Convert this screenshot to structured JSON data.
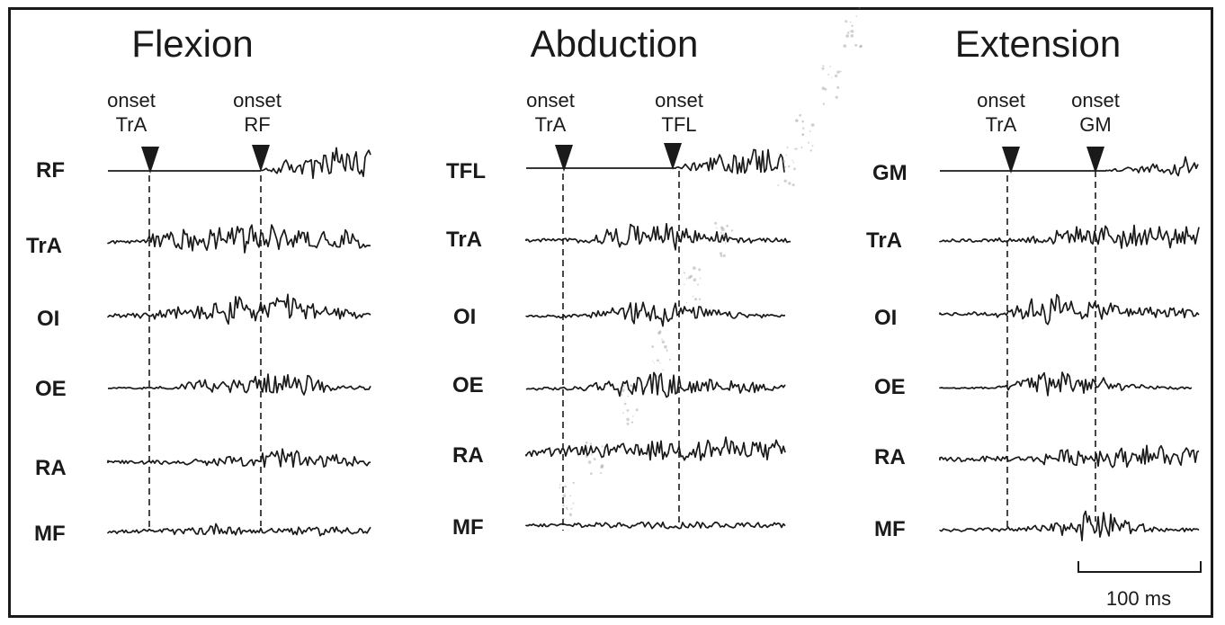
{
  "panels": [
    {
      "title": "Flexion",
      "onsets": [
        {
          "line1": "onset",
          "line2": "TrA"
        },
        {
          "line1": "onset",
          "line2": "RF"
        }
      ],
      "muscles": [
        "RF",
        "TrA",
        "OI",
        "OE",
        "RA",
        "MF"
      ]
    },
    {
      "title": "Abduction",
      "onsets": [
        {
          "line1": "onset",
          "line2": "TrA"
        },
        {
          "line1": "onset",
          "line2": "TFL"
        }
      ],
      "muscles": [
        "TFL",
        "TrA",
        "OI",
        "OE",
        "RA",
        "MF"
      ]
    },
    {
      "title": "Extension",
      "onsets": [
        {
          "line1": "onset",
          "line2": "TrA"
        },
        {
          "line1": "onset",
          "line2": "GM"
        }
      ],
      "muscles": [
        "GM",
        "TrA",
        "OI",
        "OE",
        "RA",
        "MF"
      ]
    }
  ],
  "scale_bar": {
    "label": "100 ms"
  },
  "colors": {
    "ink": "#1a1a1a",
    "background": "#ffffff"
  }
}
